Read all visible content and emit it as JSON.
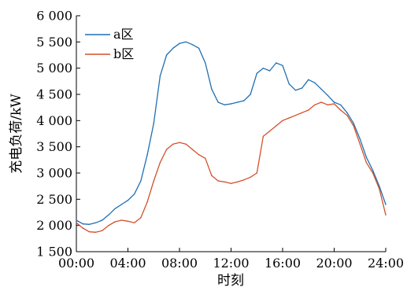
{
  "chart_data": {
    "type": "line",
    "xlabel": "时刻",
    "ylabel": "充电负荷/kW",
    "xlim": [
      0,
      24
    ],
    "ylim": [
      1500,
      6000
    ],
    "x_ticks": [
      {
        "value": 0,
        "label": "00:00"
      },
      {
        "value": 4,
        "label": "04:00"
      },
      {
        "value": 8,
        "label": "08:00"
      },
      {
        "value": 12,
        "label": "12:00"
      },
      {
        "value": 16,
        "label": "16:00"
      },
      {
        "value": 20,
        "label": "20:00"
      },
      {
        "value": 24,
        "label": "24:00"
      }
    ],
    "y_ticks": [
      {
        "value": 1500,
        "label": "1 500"
      },
      {
        "value": 2000,
        "label": "2 000"
      },
      {
        "value": 2500,
        "label": "2 500"
      },
      {
        "value": 3000,
        "label": "3 000"
      },
      {
        "value": 3500,
        "label": "3 500"
      },
      {
        "value": 4000,
        "label": "4 000"
      },
      {
        "value": 4500,
        "label": "4 500"
      },
      {
        "value": 5000,
        "label": "5 000"
      },
      {
        "value": 5500,
        "label": "5 500"
      },
      {
        "value": 6000,
        "label": "6 000"
      }
    ],
    "grid": false,
    "legend_position": "top-left",
    "series": [
      {
        "name": "a区",
        "color": "#1f6fb2",
        "x": [
          0,
          0.5,
          1,
          1.5,
          2,
          2.5,
          3,
          3.5,
          4,
          4.5,
          5,
          5.5,
          6,
          6.5,
          7,
          7.5,
          8,
          8.5,
          9,
          9.5,
          10,
          10.5,
          11,
          11.5,
          12,
          12.5,
          13,
          13.5,
          14,
          14.5,
          15,
          15.5,
          16,
          16.5,
          17,
          17.5,
          18,
          18.5,
          19,
          19.5,
          20,
          20.5,
          21,
          21.5,
          22,
          22.5,
          23,
          23.5,
          24
        ],
        "y": [
          2100,
          2030,
          2020,
          2050,
          2100,
          2200,
          2320,
          2400,
          2480,
          2600,
          2850,
          3350,
          3950,
          4850,
          5250,
          5380,
          5470,
          5500,
          5450,
          5380,
          5100,
          4600,
          4350,
          4300,
          4320,
          4350,
          4380,
          4500,
          4900,
          5000,
          4950,
          5100,
          5050,
          4700,
          4580,
          4620,
          4780,
          4720,
          4600,
          4480,
          4350,
          4300,
          4150,
          3950,
          3650,
          3300,
          3050,
          2750,
          2400
        ]
      },
      {
        "name": "b区",
        "color": "#d4502a",
        "x": [
          0,
          0.5,
          1,
          1.5,
          2,
          2.5,
          3,
          3.5,
          4,
          4.5,
          5,
          5.5,
          6,
          6.5,
          7,
          7.5,
          8,
          8.5,
          9,
          9.5,
          10,
          10.5,
          11,
          11.5,
          12,
          12.5,
          13,
          13.5,
          14,
          14.5,
          15,
          15.5,
          16,
          16.5,
          17,
          17.5,
          18,
          18.5,
          19,
          19.5,
          20,
          20.5,
          21,
          21.5,
          22,
          22.5,
          23,
          23.5,
          24
        ],
        "y": [
          2050,
          1950,
          1880,
          1870,
          1900,
          2000,
          2070,
          2100,
          2080,
          2050,
          2150,
          2450,
          2850,
          3200,
          3450,
          3550,
          3580,
          3550,
          3450,
          3350,
          3280,
          2950,
          2850,
          2830,
          2800,
          2830,
          2870,
          2920,
          3000,
          3700,
          3800,
          3900,
          4000,
          4050,
          4100,
          4150,
          4200,
          4300,
          4350,
          4300,
          4320,
          4200,
          4100,
          3900,
          3550,
          3200,
          3000,
          2700,
          2200
        ]
      }
    ]
  }
}
